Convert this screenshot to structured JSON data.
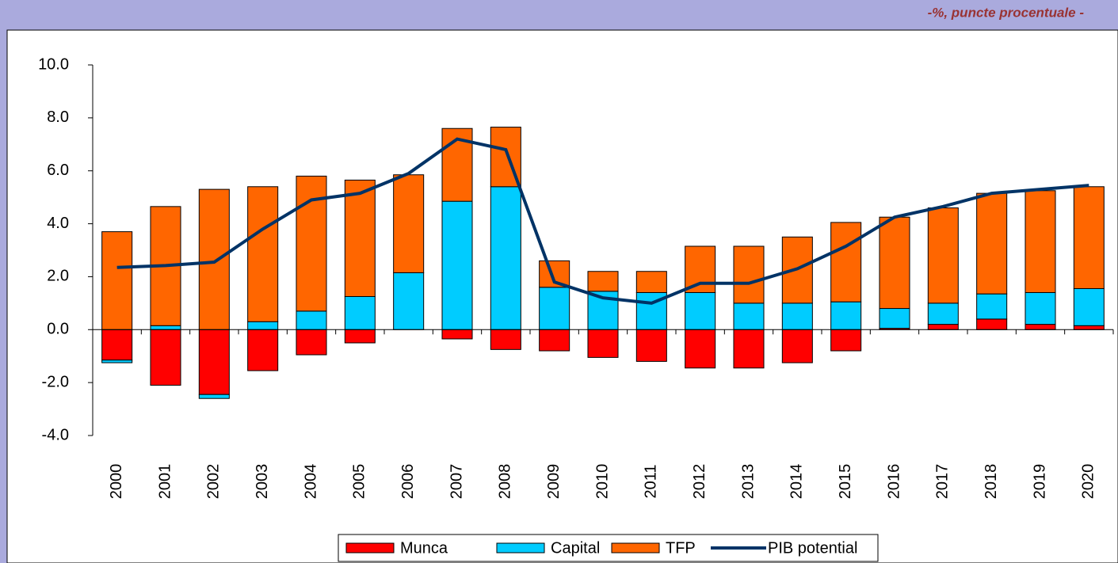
{
  "chart_data": {
    "type": "bar-line",
    "subtitle": "-%, puncte procentuale -",
    "categories": [
      "2000",
      "2001",
      "2002",
      "2003",
      "2004",
      "2005",
      "2006",
      "2007",
      "2008",
      "2009",
      "2010",
      "2011",
      "2012",
      "2013",
      "2014",
      "2015",
      "2016",
      "2017",
      "2018",
      "2019",
      "2020"
    ],
    "series": [
      {
        "name": "Munca",
        "color": "#ff0000",
        "values": [
          -1.15,
          -2.1,
          -2.45,
          -1.55,
          -0.95,
          -0.5,
          0,
          -0.35,
          -0.75,
          -0.8,
          -1.05,
          -1.2,
          -1.45,
          -1.45,
          -1.25,
          -0.8,
          0.05,
          0.2,
          0.4,
          0.2,
          0.15
        ]
      },
      {
        "name": "Capital",
        "color": "#00ccff",
        "values": [
          -0.1,
          0.15,
          -0.15,
          0.3,
          0.7,
          1.25,
          2.15,
          4.85,
          5.4,
          1.6,
          1.45,
          1.4,
          1.4,
          1.0,
          1.0,
          1.05,
          0.75,
          0.8,
          0.95,
          1.2,
          1.4
        ]
      },
      {
        "name": "TFP",
        "color": "#ff6600",
        "values": [
          3.7,
          4.5,
          5.3,
          5.1,
          5.1,
          4.4,
          3.7,
          2.75,
          2.25,
          1.0,
          0.75,
          0.8,
          1.75,
          2.15,
          2.5,
          3.0,
          3.45,
          3.6,
          3.8,
          3.85,
          3.85
        ]
      },
      {
        "name": "PIB potential",
        "color": "#003366",
        "type": "line",
        "values": [
          2.35,
          2.42,
          2.55,
          3.8,
          4.9,
          5.15,
          5.9,
          7.2,
          6.8,
          1.8,
          1.2,
          1.0,
          1.75,
          1.75,
          2.3,
          3.15,
          4.25,
          4.65,
          5.15,
          5.3,
          5.45
        ]
      }
    ],
    "ylim": [
      -4,
      10
    ],
    "yticks": [
      {
        "value": -4,
        "label": "-4.0"
      },
      {
        "value": -2,
        "label": "-2.0"
      },
      {
        "value": 0,
        "label": "0.0"
      },
      {
        "value": 2,
        "label": "2.0"
      },
      {
        "value": 4,
        "label": "4.0"
      },
      {
        "value": 6,
        "label": "6.0"
      },
      {
        "value": 8,
        "label": "8.0"
      },
      {
        "value": 10,
        "label": "10.0"
      }
    ],
    "grid": false,
    "legend": "bottom"
  }
}
